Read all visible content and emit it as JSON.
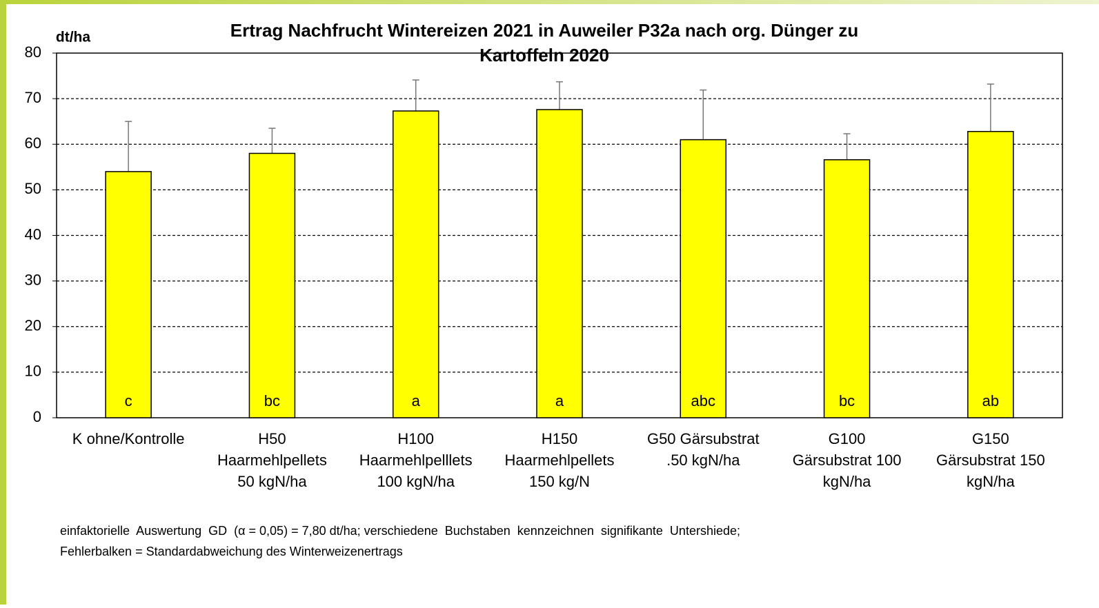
{
  "chart_data": {
    "type": "bar",
    "title": [
      "Ertrag Nachfrucht Wintereizen 2021 in Auweiler P32a nach org. Dünger zu",
      "Kartoffeln 2020"
    ],
    "y_label": "dt/ha",
    "categories": [
      [
        "K ohne/Kontrolle"
      ],
      [
        "H50",
        "Haarmehlpellets",
        "50 kgN/ha"
      ],
      [
        "H100",
        "Haarmehlpelllets",
        "100 kgN/ha"
      ],
      [
        "H150",
        "Haarmehlpellets",
        "150 kg/N"
      ],
      [
        "G50 Gärsubstrat",
        ".50 kgN/ha"
      ],
      [
        "G100",
        "Gärsubstrat 100",
        "kgN/ha"
      ],
      [
        "G150",
        "Gärsubstrat 150",
        "kgN/ha"
      ]
    ],
    "values": [
      54,
      58,
      67.3,
      67.6,
      61,
      56.6,
      62.8
    ],
    "errors": [
      11,
      5.5,
      6.8,
      6.1,
      10.9,
      5.7,
      10.4
    ],
    "letters": [
      "c",
      "bc",
      "a",
      "a",
      "abc",
      "bc",
      "ab"
    ],
    "color": "#ffff00",
    "ylim": [
      0,
      80
    ],
    "yticks": [
      0,
      10,
      20,
      30,
      40,
      50,
      60,
      70,
      80
    ],
    "grid": true,
    "footnote": [
      "einfaktorielle  Auswertung  GD  (α = 0,05) = 7,80 dt/ha; verschiedene  Buchstaben  kennzeichnen  signifikante  Untershiede;",
      "Fehlerbalken = Standardabweichung des Winterweizenertrags"
    ]
  }
}
